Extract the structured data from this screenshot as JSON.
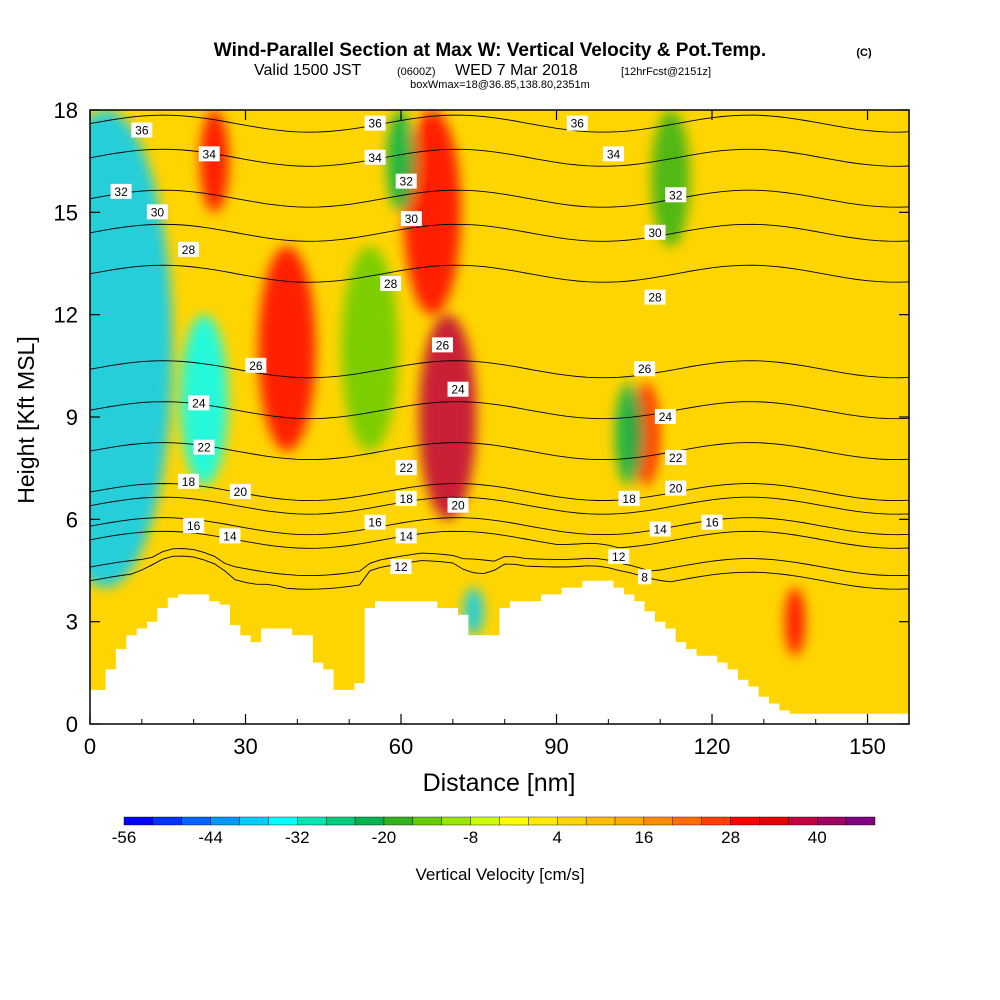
{
  "header": {
    "title": "Wind-Parallel Section at Max W: Vertical Velocity & Pot.Temp.",
    "copyright": "(C)",
    "valid_prefix": "Valid 1500 JST",
    "valid_utc": "(0600Z)",
    "valid_date": "WED 7 Mar 2018",
    "forecast": "[12hrFcst@2151z]",
    "box_info": "boxWmax=18@36.85,138.80,2351m"
  },
  "chart_data": {
    "type": "heatmap",
    "title": "Wind-Parallel Section at Max W: Vertical Velocity & Pot.Temp.",
    "xlabel": "Distance [nm]",
    "ylabel": "Height [Kft MSL]",
    "xlim": [
      0,
      158
    ],
    "ylim": [
      0,
      18
    ],
    "x_ticks": [
      "0",
      "30",
      "60",
      "90",
      "120",
      "150"
    ],
    "y_ticks": [
      "0",
      "3",
      "6",
      "9",
      "12",
      "15",
      "18"
    ],
    "colorbar": {
      "label": "Vertical Velocity [cm/s]",
      "tick_labels": [
        "-56",
        "-44",
        "-32",
        "-20",
        "-8",
        "4",
        "16",
        "28",
        "40"
      ],
      "bin_edges": [
        -56,
        -52,
        -48,
        -44,
        -40,
        -36,
        -32,
        -28,
        -24,
        -20,
        -16,
        -12,
        -8,
        -4,
        0,
        4,
        8,
        12,
        16,
        20,
        24,
        28,
        32,
        36,
        40,
        44,
        48
      ],
      "colors": [
        "#0000ff",
        "#0033ff",
        "#0066ff",
        "#0099ff",
        "#00ccff",
        "#00ffff",
        "#00e6b3",
        "#00cc80",
        "#00b34d",
        "#33b31a",
        "#66cc00",
        "#99e600",
        "#ccff00",
        "#ffff00",
        "#ffea00",
        "#ffd500",
        "#ffbf00",
        "#ffaa00",
        "#ff8c00",
        "#ff6e00",
        "#ff4000",
        "#ff0000",
        "#e00000",
        "#c00040",
        "#a00060",
        "#800080"
      ]
    },
    "terrain": {
      "x": [
        0,
        3,
        5,
        7,
        9,
        11,
        13,
        15,
        17,
        19,
        21,
        23,
        25,
        27,
        29,
        31,
        33,
        35,
        37,
        39,
        41,
        43,
        45,
        47,
        49,
        51,
        53,
        55,
        57,
        59,
        61,
        63,
        65,
        67,
        69,
        71,
        73,
        75,
        77,
        79,
        81,
        83,
        85,
        87,
        89,
        91,
        93,
        95,
        97,
        99,
        101,
        103,
        105,
        107,
        109,
        111,
        113,
        115,
        117,
        119,
        121,
        123,
        125,
        127,
        129,
        131,
        133,
        135,
        137,
        139,
        141,
        143,
        145,
        147,
        149,
        151,
        153,
        155,
        158
      ],
      "height_kft": [
        1.0,
        1.6,
        2.2,
        2.6,
        2.8,
        3.0,
        3.4,
        3.7,
        3.8,
        3.8,
        3.8,
        3.6,
        3.5,
        2.9,
        2.6,
        2.4,
        2.8,
        2.8,
        2.8,
        2.6,
        2.6,
        1.8,
        1.6,
        1.0,
        1.0,
        1.2,
        3.4,
        3.6,
        3.6,
        3.6,
        3.6,
        3.6,
        3.6,
        3.4,
        3.4,
        3.2,
        2.6,
        2.6,
        2.6,
        3.4,
        3.6,
        3.6,
        3.6,
        3.8,
        3.8,
        4.0,
        4.0,
        4.2,
        4.2,
        4.2,
        4.0,
        3.8,
        3.6,
        3.3,
        3.0,
        2.8,
        2.4,
        2.2,
        2.0,
        2.0,
        1.8,
        1.6,
        1.3,
        1.1,
        0.8,
        0.6,
        0.4,
        0.3,
        0.3,
        0.3,
        0.3,
        0.3,
        0.3,
        0.3,
        0.3,
        0.3,
        0.3,
        0.3,
        0.3
      ]
    },
    "vertical_velocity_features": [
      {
        "x": 3,
        "y_range": [
          4,
          18
        ],
        "value": -40
      },
      {
        "x": 22,
        "y_range": [
          7,
          12
        ],
        "value": -36
      },
      {
        "x": 24,
        "y_range": [
          15,
          18
        ],
        "value": 30
      },
      {
        "x": 38,
        "y_range": [
          8,
          14
        ],
        "value": 28
      },
      {
        "x": 54,
        "y_range": [
          8,
          14
        ],
        "value": -16
      },
      {
        "x": 66,
        "y_range": [
          12,
          18
        ],
        "value": 28
      },
      {
        "x": 69,
        "y_range": [
          6,
          12
        ],
        "value": 36
      },
      {
        "x": 60,
        "y_range": [
          15,
          18
        ],
        "value": -24
      },
      {
        "x": 74,
        "y_range": [
          2.6,
          4
        ],
        "value": -40
      },
      {
        "x": 107,
        "y_range": [
          7,
          10
        ],
        "value": 30
      },
      {
        "x": 104,
        "y_range": [
          7,
          10
        ],
        "value": -24
      },
      {
        "x": 112,
        "y_range": [
          14,
          18
        ],
        "value": -20
      },
      {
        "x": 136,
        "y_range": [
          2,
          4
        ],
        "value": 28
      }
    ],
    "theta_contours": [
      {
        "level": 36,
        "y_kft": 17.6
      },
      {
        "level": 34,
        "y_kft": 16.6
      },
      {
        "level": 32,
        "y_kft": 15.4
      },
      {
        "level": 30,
        "y_kft": 14.4
      },
      {
        "level": 28,
        "y_kft": 13.2
      },
      {
        "level": 26,
        "y_kft": 10.4
      },
      {
        "level": 24,
        "y_kft": 9.2
      },
      {
        "level": 22,
        "y_kft": 8.0
      },
      {
        "level": 20,
        "y_kft": 6.8
      },
      {
        "level": 18,
        "y_kft": 6.4
      },
      {
        "level": 16,
        "y_kft": 5.8
      },
      {
        "level": 14,
        "y_kft": 5.4
      },
      {
        "level": 12,
        "y_kft": 4.6
      },
      {
        "level": 8,
        "y_kft": 4.2
      }
    ],
    "contour_labels": [
      {
        "text": "36",
        "x": 10,
        "y": 17.4
      },
      {
        "text": "36",
        "x": 55,
        "y": 17.6
      },
      {
        "text": "36",
        "x": 94,
        "y": 17.6
      },
      {
        "text": "34",
        "x": 23,
        "y": 16.7
      },
      {
        "text": "34",
        "x": 55,
        "y": 16.6
      },
      {
        "text": "34",
        "x": 101,
        "y": 16.7
      },
      {
        "text": "32",
        "x": 6,
        "y": 15.6
      },
      {
        "text": "32",
        "x": 61,
        "y": 15.9
      },
      {
        "text": "32",
        "x": 113,
        "y": 15.5
      },
      {
        "text": "30",
        "x": 13,
        "y": 15.0
      },
      {
        "text": "30",
        "x": 62,
        "y": 14.8
      },
      {
        "text": "30",
        "x": 109,
        "y": 14.4
      },
      {
        "text": "28",
        "x": 19,
        "y": 13.9
      },
      {
        "text": "28",
        "x": 58,
        "y": 12.9
      },
      {
        "text": "28",
        "x": 109,
        "y": 12.5
      },
      {
        "text": "26",
        "x": 32,
        "y": 10.5
      },
      {
        "text": "26",
        "x": 68,
        "y": 11.1
      },
      {
        "text": "26",
        "x": 107,
        "y": 10.4
      },
      {
        "text": "24",
        "x": 21,
        "y": 9.4
      },
      {
        "text": "24",
        "x": 71,
        "y": 9.8
      },
      {
        "text": "24",
        "x": 111,
        "y": 9.0
      },
      {
        "text": "22",
        "x": 22,
        "y": 8.1
      },
      {
        "text": "22",
        "x": 61,
        "y": 7.5
      },
      {
        "text": "22",
        "x": 113,
        "y": 7.8
      },
      {
        "text": "20",
        "x": 29,
        "y": 6.8
      },
      {
        "text": "20",
        "x": 71,
        "y": 6.4
      },
      {
        "text": "20",
        "x": 113,
        "y": 6.9
      },
      {
        "text": "18",
        "x": 19,
        "y": 7.1
      },
      {
        "text": "18",
        "x": 61,
        "y": 6.6
      },
      {
        "text": "18",
        "x": 104,
        "y": 6.6
      },
      {
        "text": "16",
        "x": 20,
        "y": 5.8
      },
      {
        "text": "16",
        "x": 55,
        "y": 5.9
      },
      {
        "text": "16",
        "x": 120,
        "y": 5.9
      },
      {
        "text": "14",
        "x": 27,
        "y": 5.5
      },
      {
        "text": "14",
        "x": 61,
        "y": 5.5
      },
      {
        "text": "14",
        "x": 110,
        "y": 5.7
      },
      {
        "text": "12",
        "x": 60,
        "y": 4.6
      },
      {
        "text": "12",
        "x": 102,
        "y": 4.9
      },
      {
        "text": "8",
        "x": 107,
        "y": 4.3
      }
    ]
  }
}
